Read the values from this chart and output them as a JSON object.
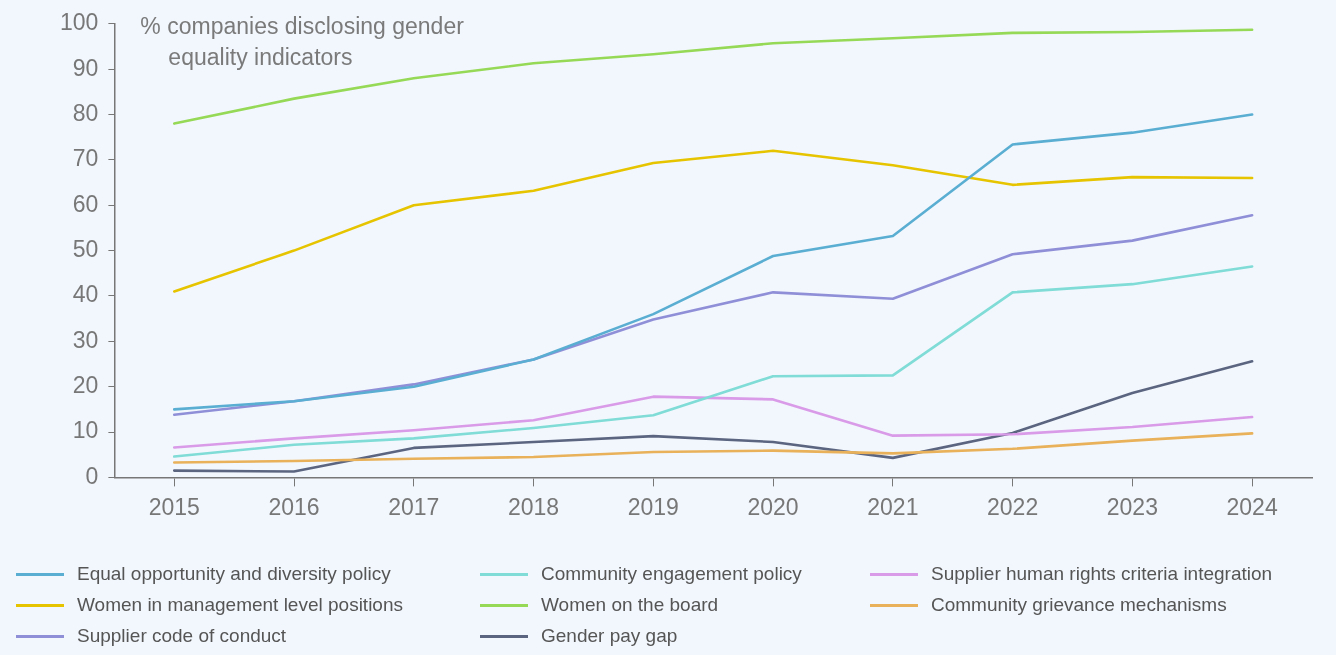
{
  "chart_data": {
    "type": "line",
    "ylabel": "% companies disclosing gender equality indicators",
    "x": [
      2015,
      2016,
      2017,
      2018,
      2019,
      2020,
      2021,
      2022,
      2023,
      2024
    ],
    "xlim": [
      2014.5,
      2024.5
    ],
    "xticks": [
      2015,
      2016,
      2017,
      2018,
      2019,
      2020,
      2021,
      2022,
      2023,
      2024
    ],
    "ylim": [
      0,
      100
    ],
    "yticks": [
      0,
      10,
      20,
      30,
      40,
      50,
      60,
      70,
      80,
      90,
      100
    ],
    "grid": false,
    "legend": "bottom",
    "marker": "none",
    "line_style": "solid",
    "series": [
      {
        "name": "Equal opportunity and diversity policy",
        "color": "#5aaed2",
        "values": [
          15,
          16.8,
          20,
          26,
          36,
          48.8,
          53.2,
          73.4,
          76,
          80
        ]
      },
      {
        "name": "Community engagement policy",
        "color": "#7fdcd6",
        "values": [
          4.6,
          7.2,
          8.6,
          10.9,
          13.7,
          22.3,
          22.5,
          40.8,
          42.6,
          46.5
        ]
      },
      {
        "name": "Supplier human rights criteria integration",
        "color": "#d99ae8",
        "values": [
          6.6,
          8.6,
          10.4,
          12.6,
          17.8,
          17.2,
          9.2,
          9.5,
          11.1,
          13.3
        ]
      },
      {
        "name": "Women in management level positions",
        "color": "#e6c400",
        "values": [
          41,
          50,
          60,
          63.2,
          69.3,
          72,
          68.8,
          64.5,
          66.2,
          66
        ]
      },
      {
        "name": "Women on the board",
        "color": "#95d957",
        "values": [
          78,
          83.5,
          88,
          91.3,
          93.3,
          95.7,
          96.8,
          98,
          98.2,
          98.7
        ]
      },
      {
        "name": "Community grievance mechanisms",
        "color": "#e8b15a",
        "values": [
          3.3,
          3.6,
          4.1,
          4.5,
          5.6,
          5.9,
          5.3,
          6.3,
          8.1,
          9.7
        ]
      },
      {
        "name": "Supplier code of conduct",
        "color": "#8f8fd8",
        "values": [
          13.8,
          16.8,
          20.5,
          26,
          34.8,
          40.8,
          39.4,
          49.2,
          52.2,
          57.8
        ]
      },
      {
        "name": "Gender pay gap",
        "color": "#5b6580",
        "values": [
          1.5,
          1.3,
          6.5,
          7.8,
          9.1,
          7.8,
          4.3,
          9.8,
          18.6,
          25.6
        ]
      }
    ]
  }
}
